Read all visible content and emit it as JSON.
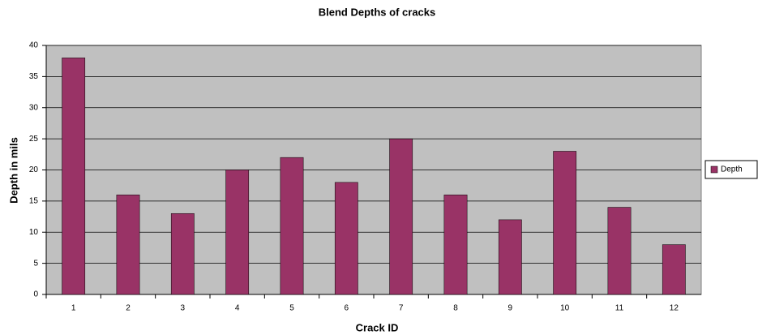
{
  "chart_data": {
    "type": "bar",
    "title": "Blend Depths of cracks",
    "x_label": "Crack ID",
    "y_label": "Depth in mils",
    "categories": [
      "1",
      "2",
      "3",
      "4",
      "5",
      "6",
      "7",
      "8",
      "9",
      "10",
      "11",
      "12"
    ],
    "series": [
      {
        "name": "Depth",
        "color": "#993366",
        "values": [
          38,
          16,
          13,
          20,
          22,
          18,
          25,
          16,
          12,
          23,
          14,
          8
        ]
      }
    ],
    "ylim": [
      0,
      40
    ],
    "yticks": [
      0,
      5,
      10,
      15,
      20,
      25,
      30,
      35,
      40
    ],
    "grid": true,
    "legend": "right"
  }
}
